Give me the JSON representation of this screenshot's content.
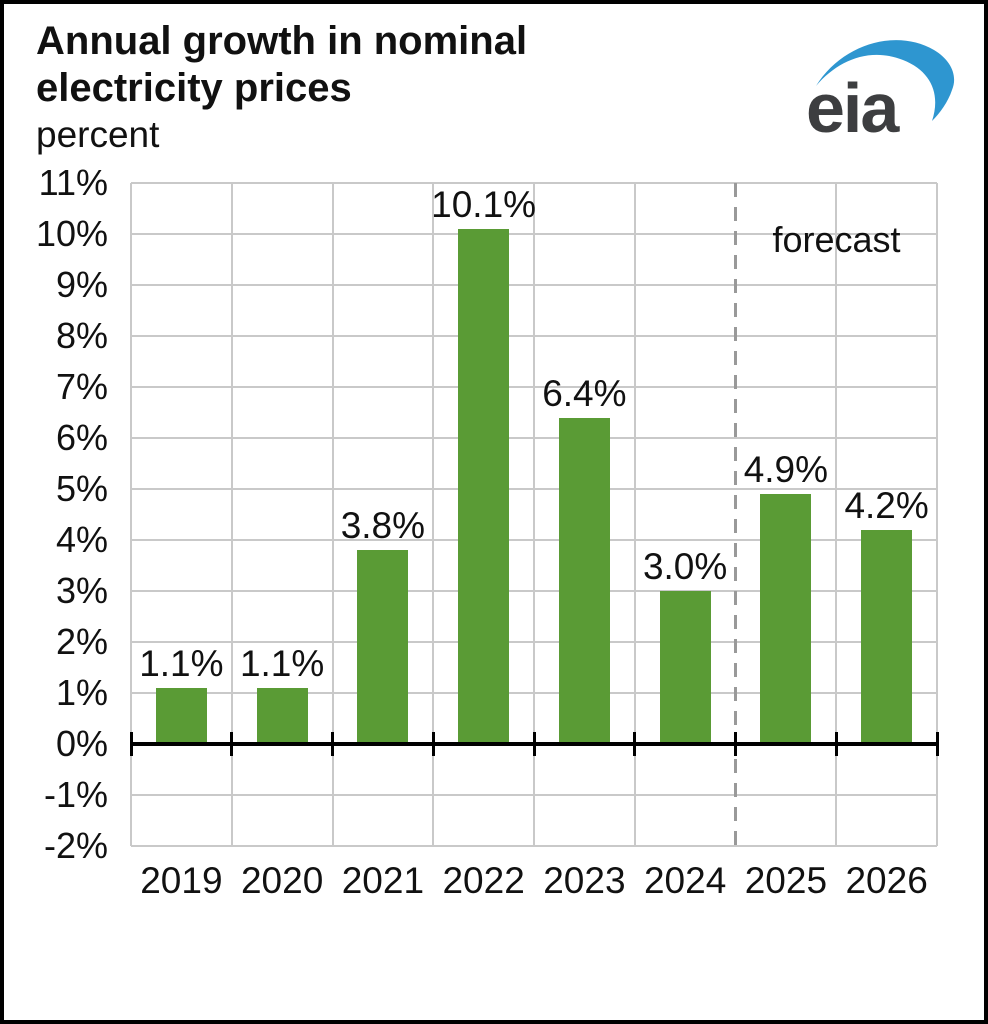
{
  "header": {
    "title": "Annual growth in nominal electricity prices",
    "subtitle": "percent"
  },
  "logo": {
    "text": "eia",
    "text_color": "#3d3e40",
    "swoosh_color": "#2e96d0"
  },
  "chart_data": {
    "type": "bar",
    "title": "Annual growth in nominal electricity prices",
    "ylabel": "percent",
    "categories": [
      "2019",
      "2020",
      "2021",
      "2022",
      "2023",
      "2024",
      "2025",
      "2026"
    ],
    "values": [
      1.1,
      1.1,
      3.8,
      10.1,
      6.4,
      3.0,
      4.9,
      4.2
    ],
    "data_labels": [
      "1.1%",
      "1.1%",
      "3.8%",
      "10.1%",
      "6.4%",
      "3.0%",
      "4.9%",
      "4.2%"
    ],
    "ytick_labels": [
      "11%",
      "10%",
      "9%",
      "8%",
      "7%",
      "6%",
      "5%",
      "4%",
      "3%",
      "2%",
      "1%",
      "0%",
      "-1%",
      "-2%"
    ],
    "ylim": [
      -2,
      11
    ],
    "ytick_step": 1,
    "grid": true,
    "legend_position": "none",
    "bar_color": "#5a9b35",
    "gridline_color": "#c9c9c9",
    "axis_color": "#000000",
    "forecast_label": "forecast",
    "forecast_start_category": "2025",
    "forecast_divider_color": "#999999"
  }
}
